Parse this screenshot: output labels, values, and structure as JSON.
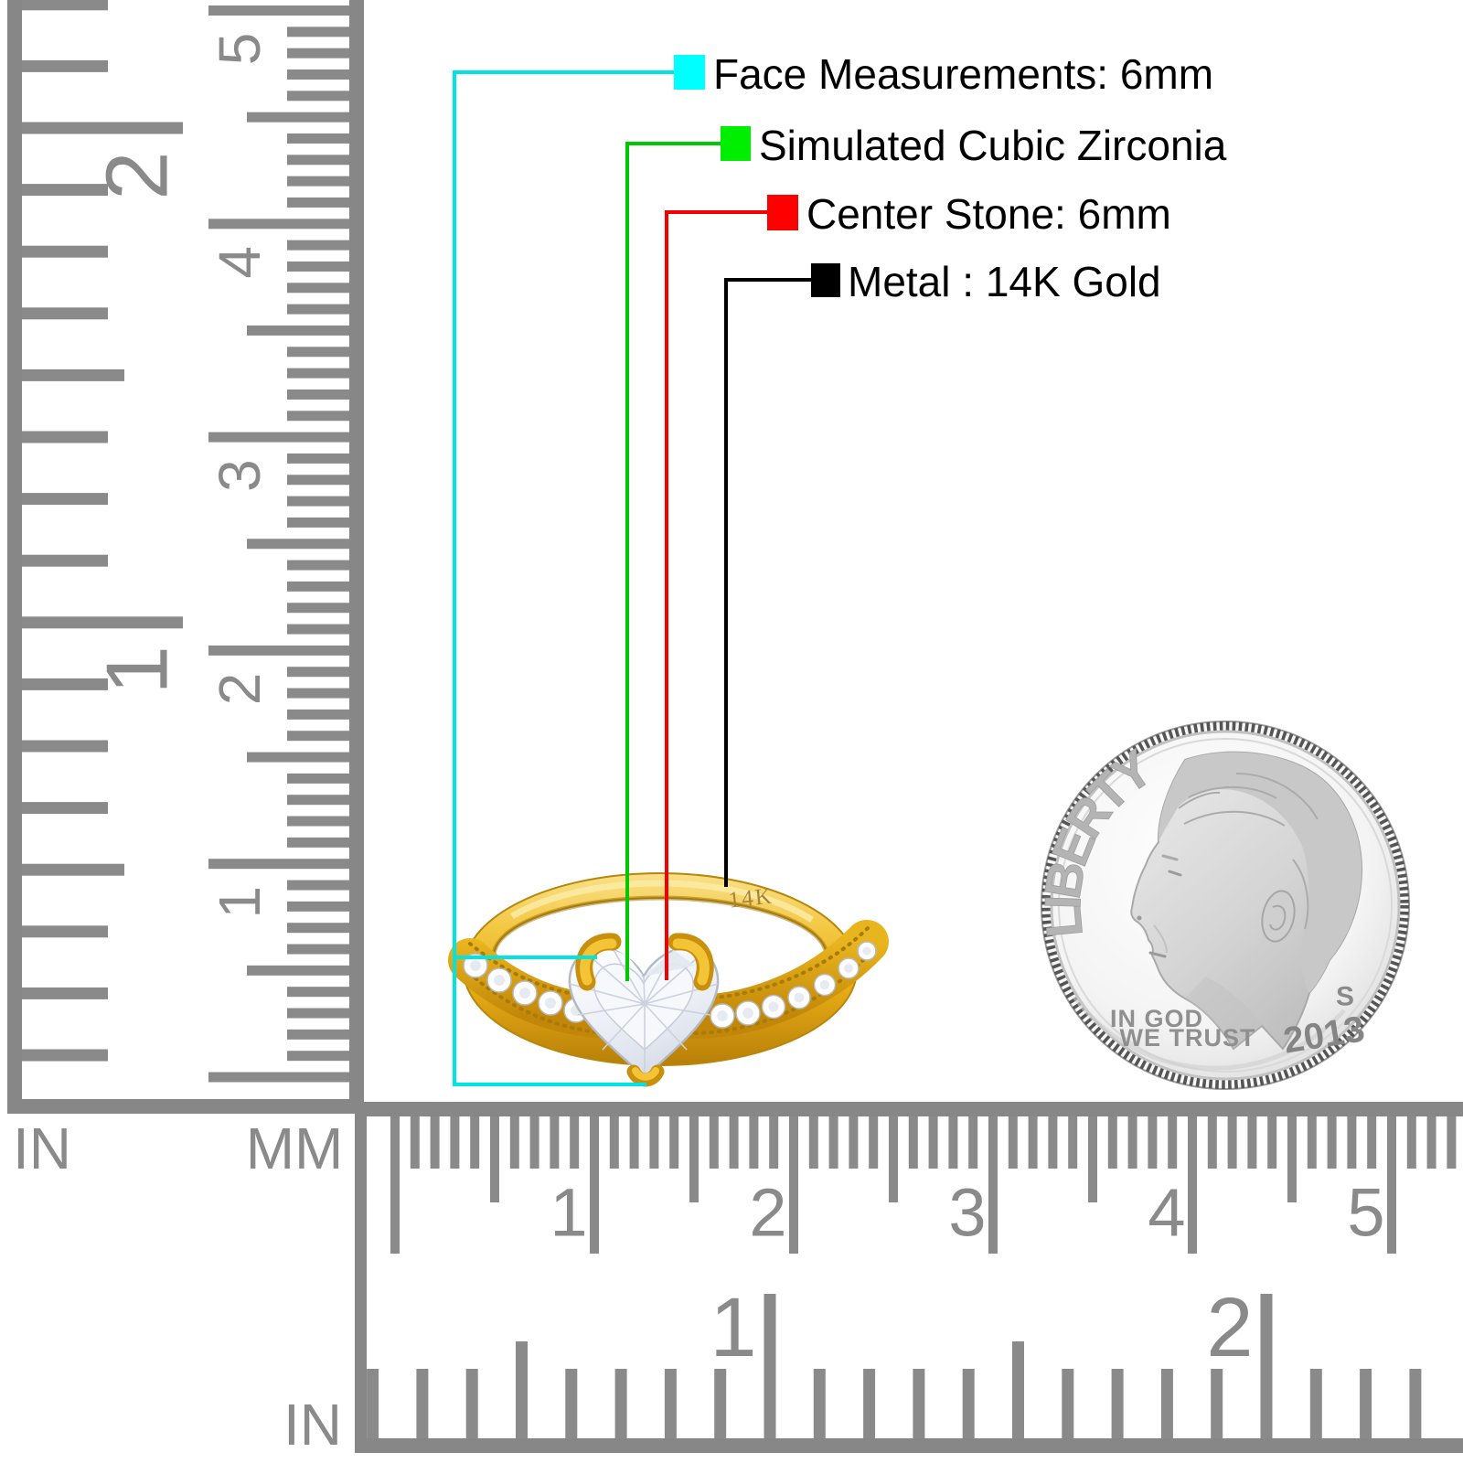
{
  "annotations": {
    "text_color": "#000000",
    "items": [
      {
        "label": "Face Measurements: 6mm",
        "color": "#00ffff",
        "line_color": "#00e4e4"
      },
      {
        "label": "Simulated Cubic Zirconia",
        "color": "#00ee00",
        "line_color": "#00c800"
      },
      {
        "label": "Center Stone: 6mm",
        "color": "#ff0000",
        "line_color": "#f40000"
      },
      {
        "label": "Metal : 14K Gold",
        "color": "#000000",
        "line_color": "#000000"
      }
    ]
  },
  "ring": {
    "engraving": "14K",
    "gold_color": "#EDB417",
    "gold_highlight": "#F9DE7C",
    "gold_shadow": "#B77F08",
    "stone_color": "#f2f4f9"
  },
  "coin": {
    "liberty": "LIBERTY",
    "motto_line1": "IN GOD",
    "motto_line2": "WE TRUST",
    "mint_mark": "S",
    "year": "2013",
    "text_color": "#8f8f8f"
  },
  "rulers": {
    "color": "#8a8a8a",
    "left": {
      "unit_inch": "IN",
      "unit_mm": "MM",
      "inch_labels": [
        "2",
        "1"
      ],
      "mm_labels": [
        "5",
        "4",
        "3",
        "2",
        "1"
      ]
    },
    "bottom": {
      "unit_inch": "IN",
      "mm_labels": [
        "1",
        "2",
        "3",
        "4",
        "5"
      ],
      "inch_labels": [
        "1",
        "2"
      ]
    }
  }
}
